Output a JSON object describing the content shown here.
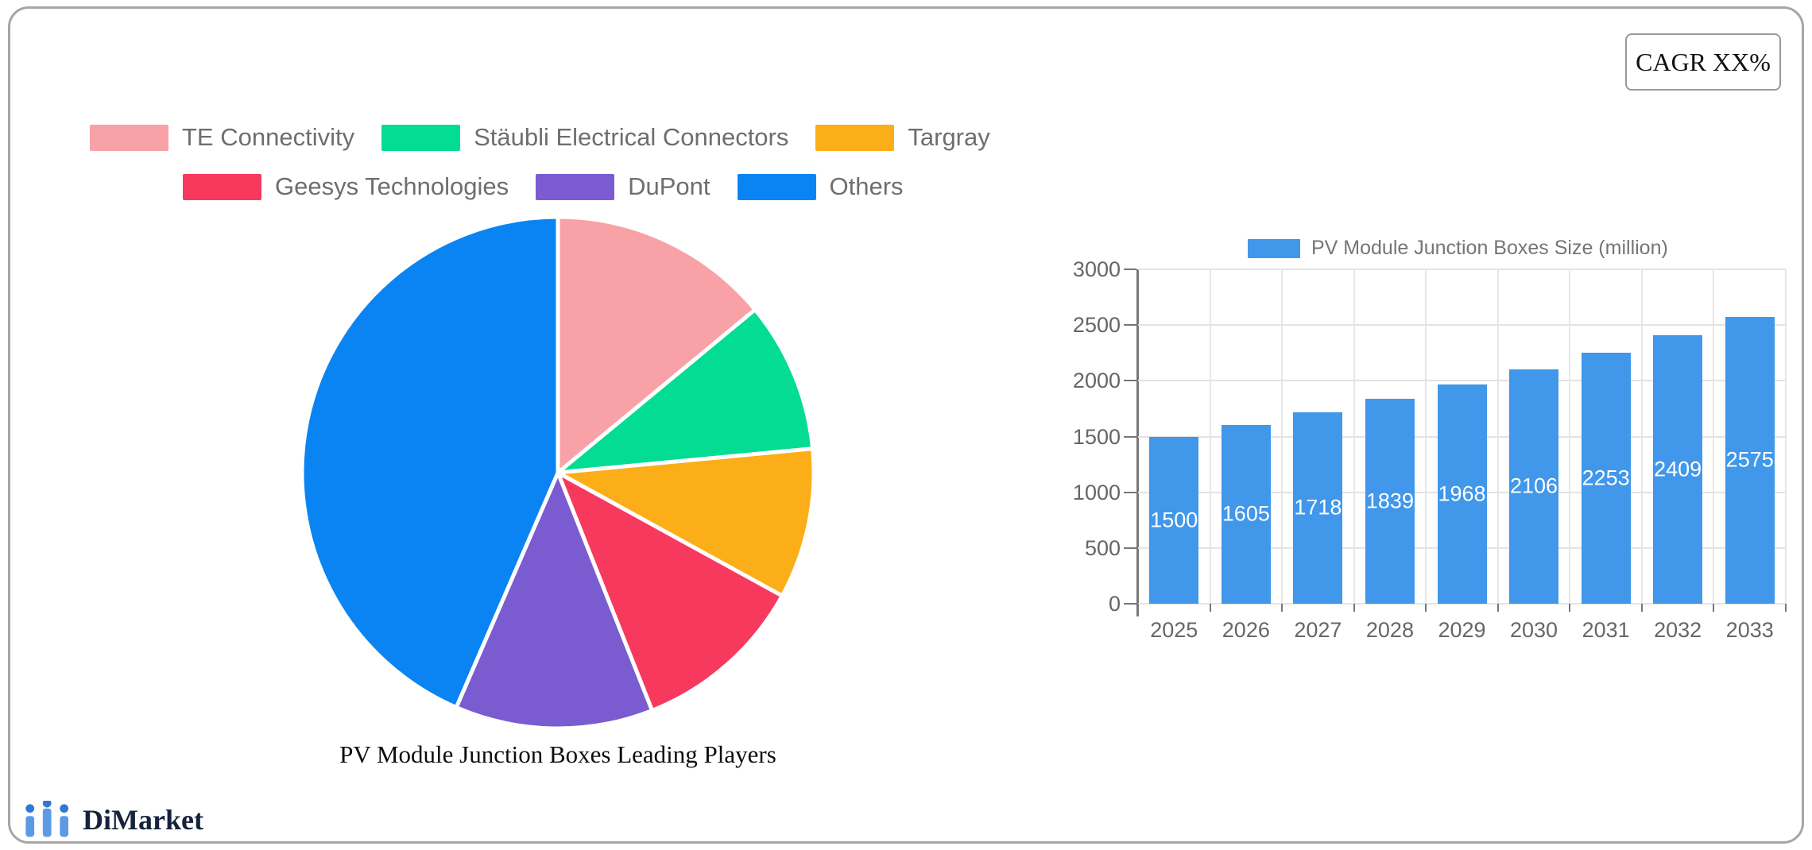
{
  "cagr": {
    "label": "CAGR XX%"
  },
  "pie_legend": {
    "rows": [
      [
        {
          "label": "TE Connectivity",
          "color": "#F8A1A6"
        },
        {
          "label": "Stäubli Electrical Connectors",
          "color": "#03DC93"
        },
        {
          "label": "Targray",
          "color": "#FBAE17"
        }
      ],
      [
        {
          "label": "Geesys Technologies",
          "color": "#F8395E"
        },
        {
          "label": "DuPont",
          "color": "#7A5CD0"
        },
        {
          "label": "Others",
          "color": "#0A84F2"
        }
      ]
    ]
  },
  "pie_title": "PV Module Junction Boxes Leading Players",
  "bar_legend": {
    "label": "PV Module Junction Boxes Size (million)",
    "swatch_color": "#4197E9"
  },
  "logo": {
    "text": "DiMarket",
    "icon": "bar-chart-icon",
    "icon_color": "#4A90E2",
    "text_color": "#16233D"
  },
  "chart_data": [
    {
      "type": "pie",
      "title": "PV Module Junction Boxes Leading Players",
      "labels": [
        "TE Connectivity",
        "Stäubli Electrical Connectors",
        "Targray",
        "Geesys Technologies",
        "DuPont",
        "Others"
      ],
      "values_pct_estimated": [
        14,
        9.5,
        9.5,
        11,
        12.5,
        43.5
      ],
      "colors": [
        "#F8A1A6",
        "#03DC93",
        "#FBAE17",
        "#F8395E",
        "#7A5CD0",
        "#0A84F2"
      ],
      "start_angle": "12-o-clock",
      "direction": "clockwise",
      "legend_position": "top-left-two-rows",
      "slice_gap_color": "#FFFFFF"
    },
    {
      "type": "bar",
      "series_label": "PV Module Junction Boxes Size (million)",
      "categories": [
        "2025",
        "2026",
        "2027",
        "2028",
        "2029",
        "2030",
        "2031",
        "2032",
        "2033"
      ],
      "values": [
        1500,
        1605,
        1718,
        1839,
        1968,
        2106,
        2253,
        2409,
        2575
      ],
      "ylim": [
        0,
        3000
      ],
      "yticks": [
        0,
        500,
        1000,
        1500,
        2000,
        2500,
        3000
      ],
      "bar_color": "#4197E9",
      "value_label_color": "#FFFFFF",
      "value_label_position": "inside-center",
      "grid": true,
      "legend_position": "top"
    }
  ]
}
